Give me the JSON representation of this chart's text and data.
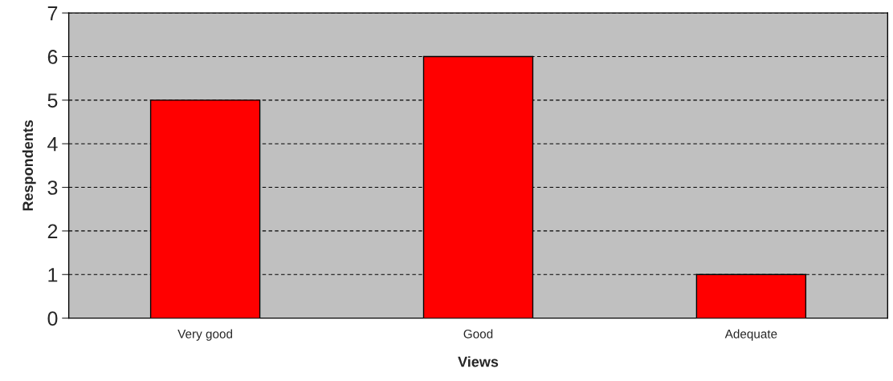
{
  "chart_data": {
    "type": "bar",
    "xlabel": "Views",
    "ylabel": "Respondents",
    "categories": [
      "Very good",
      "Good",
      "Adequate"
    ],
    "values": [
      5,
      6,
      1
    ],
    "color": "#ff0000",
    "ylim": [
      0,
      7
    ],
    "yticks": [
      0,
      1,
      2,
      3,
      4,
      5,
      6,
      7
    ],
    "grid": "y",
    "legend": false
  }
}
